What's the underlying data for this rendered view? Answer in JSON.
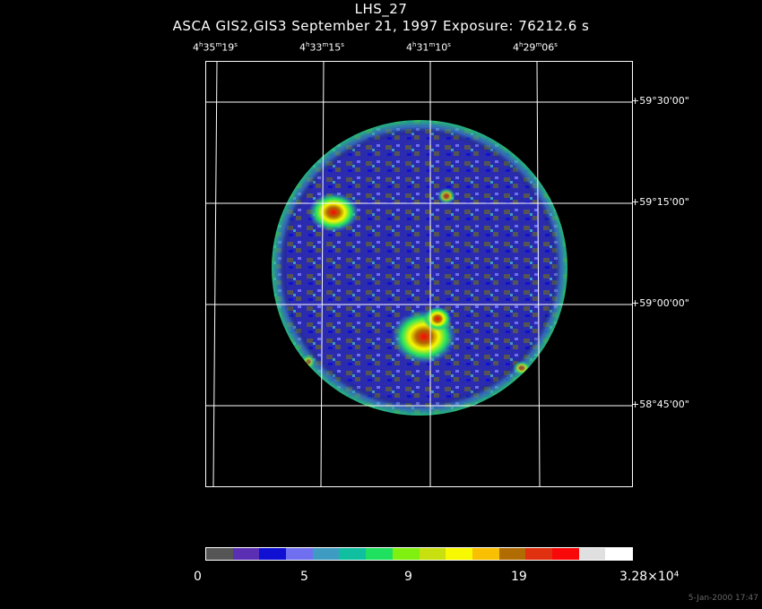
{
  "title": "LHS_27",
  "subtitle": "ASCA GIS2,GIS3 September 21, 1997 Exposure: 76212.6 s",
  "ra_labels": [
    {
      "h": "4",
      "m": "35",
      "s": "19"
    },
    {
      "h": "4",
      "m": "33",
      "s": "15"
    },
    {
      "h": "4",
      "m": "31",
      "s": "10"
    },
    {
      "h": "4",
      "m": "29",
      "s": "06"
    }
  ],
  "dec_labels": [
    "+59°30'00\"",
    "+59°15'00\"",
    "+59°00'00\"",
    "+58°45'00\""
  ],
  "colorbar": {
    "colors": [
      "#555555",
      "#5a2fb4",
      "#1010d2",
      "#6f6ff0",
      "#3e9bc2",
      "#0fbfa0",
      "#20e060",
      "#80f010",
      "#c8e010",
      "#f8f800",
      "#f8c000",
      "#b06c00",
      "#e03010",
      "#f80808",
      "#e0e0e0",
      "#ffffff"
    ],
    "tick_labels": [
      "0",
      "5",
      "9",
      "19",
      "3.28×10⁴"
    ]
  },
  "footer": "5-Jan-2000 17:47"
}
